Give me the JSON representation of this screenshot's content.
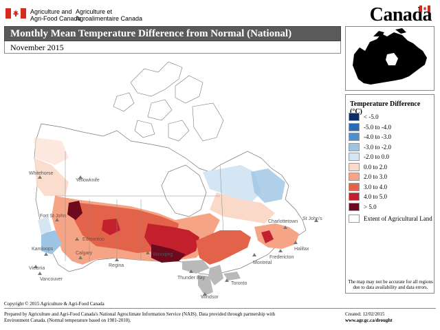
{
  "header": {
    "dept_en_line1": "Agriculture and",
    "dept_en_line2": "Agri-Food Canada",
    "dept_fr_line1": "Agriculture et",
    "dept_fr_line2": "Agroalimentaire Canada",
    "wordmark": "Canada"
  },
  "title": "Monthly Mean Temperature Difference from Normal (National)",
  "date": "November 2015",
  "legend": {
    "title": "Temperature Difference (°C)",
    "items": [
      {
        "label": "< -5.0",
        "color": "#0b2f6b"
      },
      {
        "label": "-5.0 to -4.0",
        "color": "#2a6cb8"
      },
      {
        "label": "-4.0 to -3.0",
        "color": "#4f8fcc"
      },
      {
        "label": "-3.0 to -2.0",
        "color": "#9cc4e3"
      },
      {
        "label": "-2.0 to 0.0",
        "color": "#d4e6f4"
      },
      {
        "label": "0.0 to 2.0",
        "color": "#fbd9c9"
      },
      {
        "label": "2.0 to 3.0",
        "color": "#f5a585"
      },
      {
        "label": "3.0 to 4.0",
        "color": "#e3624a"
      },
      {
        "label": "4.0 to 5.0",
        "color": "#c2202c"
      },
      {
        "label": "> 5.0",
        "color": "#6e0a1e"
      }
    ],
    "extent_label": "Extent of Agricultural Land",
    "note": "The map may not be accurate for all regions due to data availability and data errors."
  },
  "cities": [
    "Whitehorse",
    "Yellowknife",
    "Fort St John",
    "Edmonton",
    "Kamloops",
    "Victoria",
    "Vancouver",
    "Calgary",
    "Regina",
    "Winnipeg",
    "Thunder Bay",
    "Windsor",
    "Toronto",
    "Montreal",
    "Fredericton",
    "Charlottetown",
    "Halifax",
    "St John's"
  ],
  "footer": {
    "copyright": "Copyright © 2015 Agriculture & Agri-Food Canada",
    "prepared_line1": "Prepared by Agriculture and Agri-Food Canada's National Agroclimate Information Service (NAIS).  Data provided through partnership with",
    "prepared_line2": "Environment Canada. (Normal temperature based on 1981-2010).",
    "created": "Created: 12/02/2015",
    "url": "www.agr.gc.ca/drought"
  },
  "colors": {
    "title_bar": "#5a5a5a",
    "non_agricultural": "#ffffff",
    "lakes": "#b9b9b9"
  }
}
